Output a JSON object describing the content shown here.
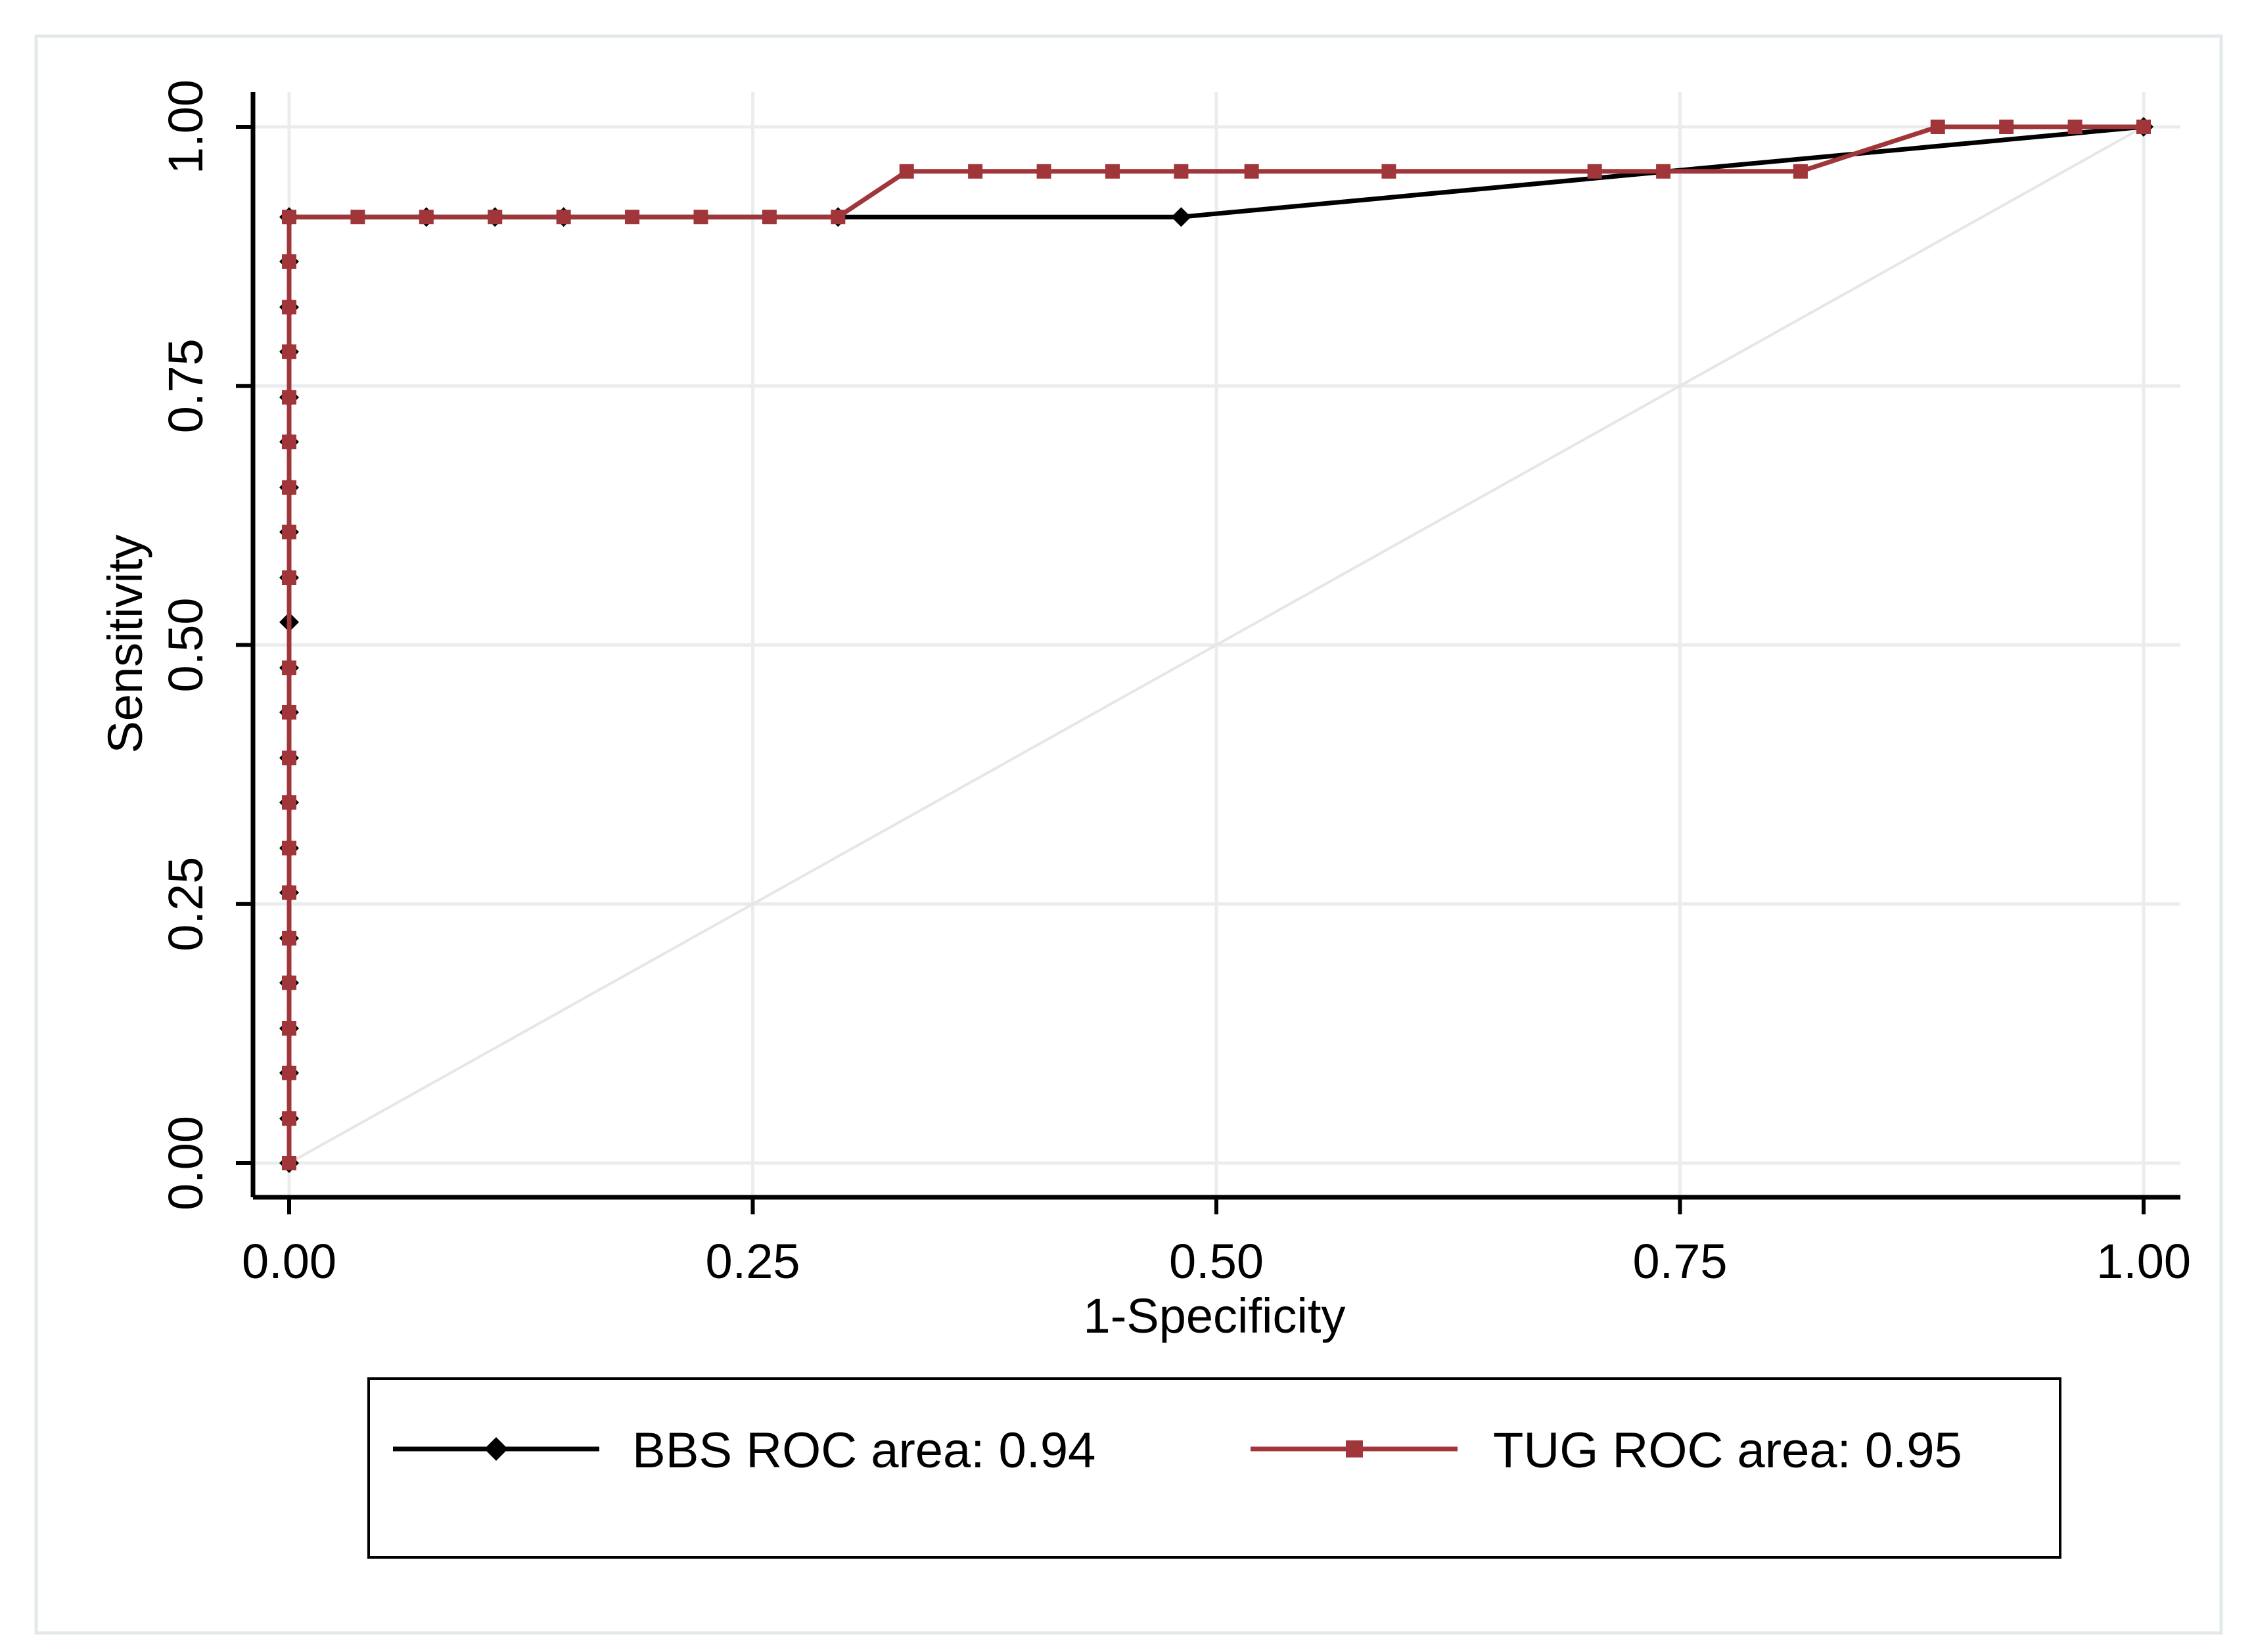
{
  "chart_data": {
    "type": "line",
    "title": "",
    "xlabel": "1-Specificity",
    "ylabel": "Sensitivity",
    "xlim": [
      0,
      1
    ],
    "ylim": [
      0,
      1
    ],
    "x_ticks": [
      "0.00",
      "0.25",
      "0.50",
      "0.75",
      "1.00"
    ],
    "y_ticks": [
      "0.00",
      "0.25",
      "0.50",
      "0.75",
      "1.00"
    ],
    "grid": true,
    "legend_position": "bottom",
    "reference_line": {
      "from": [
        0,
        0
      ],
      "to": [
        1,
        1
      ],
      "color": "#e6e6e6"
    },
    "series": [
      {
        "name": "BBS ROC area: 0.94",
        "color": "#000000",
        "marker": "diamond",
        "x": [
          0,
          0,
          0,
          0,
          0,
          0,
          0,
          0,
          0,
          0,
          0,
          0,
          0,
          0,
          0,
          0,
          0,
          0,
          0,
          0,
          0,
          0,
          0.074,
          0.111,
          0.148,
          0.296,
          0.481,
          1.0
        ],
        "y": [
          0,
          0.043,
          0.087,
          0.13,
          0.174,
          0.217,
          0.261,
          0.304,
          0.348,
          0.391,
          0.435,
          0.478,
          0.522,
          0.565,
          0.609,
          0.652,
          0.696,
          0.739,
          0.783,
          0.826,
          0.87,
          0.913,
          0.913,
          0.913,
          0.913,
          0.913,
          0.913,
          1.0
        ]
      },
      {
        "name": "TUG ROC area: 0.95",
        "color": "#a0353a",
        "marker": "square",
        "x": [
          0,
          0,
          0,
          0,
          0,
          0,
          0,
          0,
          0,
          0,
          0,
          0,
          0,
          0,
          0,
          0,
          0,
          0,
          0,
          0,
          0,
          0.037,
          0.074,
          0.111,
          0.148,
          0.185,
          0.222,
          0.259,
          0.296,
          0.333,
          0.37,
          0.407,
          0.444,
          0.481,
          0.519,
          0.593,
          0.704,
          0.741,
          0.815,
          0.889,
          0.926,
          0.963,
          1.0
        ],
        "y": [
          0,
          0.043,
          0.087,
          0.13,
          0.174,
          0.217,
          0.261,
          0.304,
          0.348,
          0.391,
          0.435,
          0.478,
          0.565,
          0.609,
          0.652,
          0.696,
          0.739,
          0.783,
          0.826,
          0.87,
          0.913,
          0.913,
          0.913,
          0.913,
          0.913,
          0.913,
          0.913,
          0.913,
          0.913,
          0.957,
          0.957,
          0.957,
          0.957,
          0.957,
          0.957,
          0.957,
          0.957,
          0.957,
          0.957,
          1.0,
          1.0,
          1.0,
          1.0
        ]
      }
    ]
  }
}
